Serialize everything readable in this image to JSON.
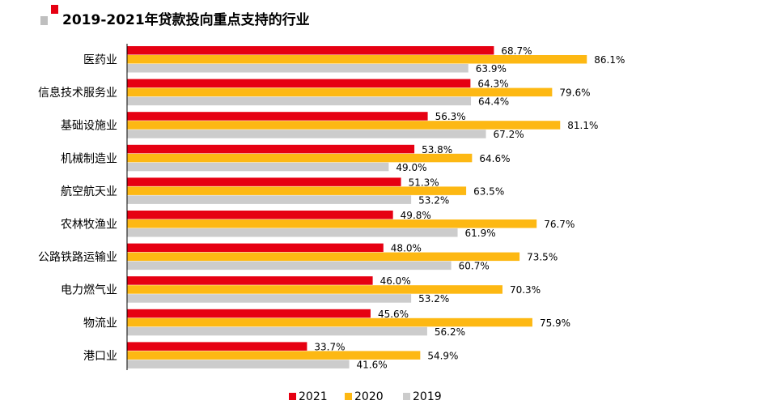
{
  "title": "2019-2021年贷款投向重点支持的行业",
  "chart_data": {
    "type": "bar",
    "orientation": "horizontal",
    "title": "2019-2021年贷款投向重点支持的行业",
    "categories": [
      "医药业",
      "信息技术服务业",
      "基础设施业",
      "机械制造业",
      "航空航天业",
      "农林牧渔业",
      "公路铁路运输业",
      "电力燃气业",
      "物流业",
      "港口业"
    ],
    "series": [
      {
        "name": "2021",
        "color": "#e60012",
        "values": [
          68.7,
          64.3,
          56.3,
          53.8,
          51.3,
          49.8,
          48.0,
          46.0,
          45.6,
          33.7
        ],
        "labels": [
          "68.7%",
          "64.3%",
          "56.3%",
          "53.8%",
          "51.3%",
          "49.8%",
          "48.0%",
          "46.0%",
          "45.6%",
          "33.7%"
        ]
      },
      {
        "name": "2020",
        "color": "#fdb813",
        "values": [
          86.1,
          79.6,
          81.1,
          64.6,
          63.5,
          76.7,
          73.5,
          70.3,
          75.9,
          54.9
        ],
        "labels": [
          "86.1%",
          "79.6%",
          "81.1%",
          "64.6%",
          "63.5%",
          "76.7%",
          "73.5%",
          "70.3%",
          "75.9%",
          "54.9%"
        ]
      },
      {
        "name": "2019",
        "color": "#cccccc",
        "values": [
          63.9,
          64.4,
          67.2,
          49.0,
          53.2,
          61.9,
          60.7,
          53.2,
          56.2,
          41.6
        ],
        "labels": [
          "63.9%",
          "64.4%",
          "67.2%",
          "49.0%",
          "53.2%",
          "61.9%",
          "60.7%",
          "53.2%",
          "56.2%",
          "41.6%"
        ]
      }
    ],
    "unit": "%",
    "legend_position": "bottom",
    "grid": false
  }
}
